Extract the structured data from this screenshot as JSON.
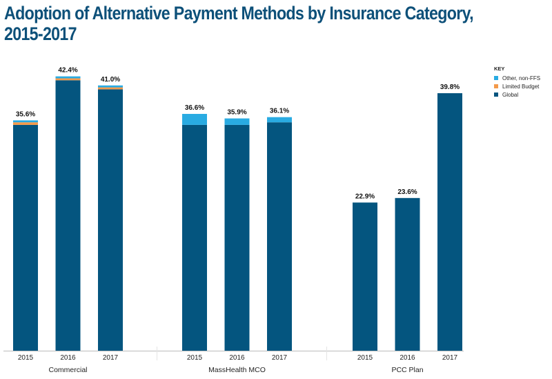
{
  "chart_data": {
    "type": "bar",
    "stacked": true,
    "title": "Adoption of Alternative Payment Methods by Insurance Category, 2015-2017",
    "title_lines": [
      "Adoption of Alternative Payment Methods by Insurance Category,",
      "2015-2017"
    ],
    "xlabel": "",
    "ylabel": "",
    "ylim": [
      0,
      45
    ],
    "grid": false,
    "legend": {
      "title": "KEY",
      "position": "top-right"
    },
    "groups": [
      {
        "name": "Commercial",
        "categories": [
          "2015",
          "2016",
          "2017"
        ]
      },
      {
        "name": "MassHealth MCO",
        "categories": [
          "2015",
          "2016",
          "2017"
        ]
      },
      {
        "name": "PCC Plan",
        "categories": [
          "2015",
          "2016",
          "2017"
        ]
      }
    ],
    "series": [
      {
        "name": "Global",
        "color": "#04557f",
        "values": [
          [
            34.9,
            41.8,
            40.4
          ],
          [
            34.9,
            34.9,
            35.3
          ],
          [
            22.9,
            23.6,
            39.8
          ]
        ]
      },
      {
        "name": "Limited Budget",
        "color": "#f39a4b",
        "values": [
          [
            0.4,
            0.3,
            0.3
          ],
          [
            0,
            0,
            0
          ],
          [
            0,
            0,
            0
          ]
        ]
      },
      {
        "name": "Other, non-FFS",
        "color": "#29abe2",
        "values": [
          [
            0.3,
            0.3,
            0.3
          ],
          [
            1.7,
            1.0,
            0.8
          ],
          [
            0,
            0,
            0
          ]
        ]
      }
    ],
    "totals": [
      [
        "35.6%",
        "42.4%",
        "41.0%"
      ],
      [
        "36.6%",
        "35.9%",
        "36.1%"
      ],
      [
        "22.9%",
        "23.6%",
        "39.8%"
      ]
    ],
    "legend_order": [
      "Other, non-FFS",
      "Limited Budget",
      "Global"
    ]
  }
}
